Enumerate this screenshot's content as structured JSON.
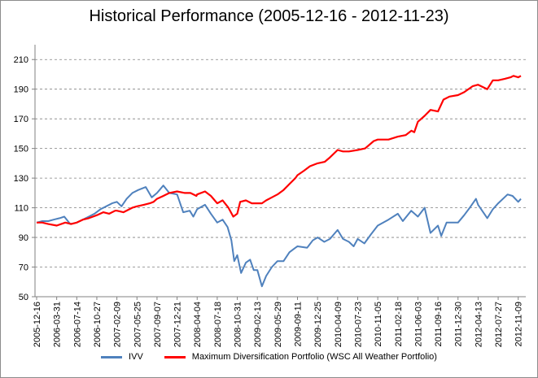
{
  "chart_data": {
    "type": "line",
    "title": "Historical Performance (2005-12-16 - 2012-11-23)",
    "xlabel": "",
    "ylabel": "",
    "ylim": [
      50,
      220
    ],
    "yticks": [
      50,
      70,
      90,
      110,
      130,
      150,
      170,
      190,
      210
    ],
    "xlim": [
      "2005-12-16",
      "2012-11-23"
    ],
    "grid": "horizontal dashed",
    "legend_position": "bottom",
    "x_tick_labels": [
      "2005-12-16",
      "2006-03-31",
      "2006-07-14",
      "2006-10-27",
      "2007-02-09",
      "2007-05-25",
      "2007-09-07",
      "2007-12-21",
      "2008-04-04",
      "2008-07-18",
      "2008-10-31",
      "2009-02-13",
      "2009-05-29",
      "2009-09-11",
      "2009-12-25",
      "2010-04-09",
      "2010-07-23",
      "2010-11-05",
      "2011-02-18",
      "2011-06-03",
      "2011-09-16",
      "2011-12-30",
      "2012-04-13",
      "2012-07-27",
      "2012-11-09"
    ],
    "series": [
      {
        "name": "IVV",
        "color": "#4f81bd",
        "points": [
          [
            "2005-12-16",
            100
          ],
          [
            "2006-01-15",
            101
          ],
          [
            "2006-02-15",
            101
          ],
          [
            "2006-03-15",
            102
          ],
          [
            "2006-04-15",
            103
          ],
          [
            "2006-05-10",
            104
          ],
          [
            "2006-06-10",
            99
          ],
          [
            "2006-07-14",
            100
          ],
          [
            "2006-08-15",
            102
          ],
          [
            "2006-09-15",
            104
          ],
          [
            "2006-10-15",
            106
          ],
          [
            "2006-11-15",
            109
          ],
          [
            "2006-12-15",
            111
          ],
          [
            "2007-01-15",
            113
          ],
          [
            "2007-02-09",
            114
          ],
          [
            "2007-03-05",
            111
          ],
          [
            "2007-04-01",
            116
          ],
          [
            "2007-05-01",
            120
          ],
          [
            "2007-06-01",
            122
          ],
          [
            "2007-07-10",
            124
          ],
          [
            "2007-08-10",
            117
          ],
          [
            "2007-09-07",
            120
          ],
          [
            "2007-10-10",
            125
          ],
          [
            "2007-11-10",
            120
          ],
          [
            "2007-12-21",
            119
          ],
          [
            "2008-01-22",
            107
          ],
          [
            "2008-02-25",
            108
          ],
          [
            "2008-03-15",
            104
          ],
          [
            "2008-04-04",
            109
          ],
          [
            "2008-05-15",
            112
          ],
          [
            "2008-06-15",
            106
          ],
          [
            "2008-07-18",
            100
          ],
          [
            "2008-08-15",
            102
          ],
          [
            "2008-09-10",
            97
          ],
          [
            "2008-09-30",
            88
          ],
          [
            "2008-10-15",
            74
          ],
          [
            "2008-10-31",
            78
          ],
          [
            "2008-11-20",
            66
          ],
          [
            "2008-12-15",
            73
          ],
          [
            "2009-01-06",
            75
          ],
          [
            "2009-01-25",
            68
          ],
          [
            "2009-02-13",
            68
          ],
          [
            "2009-03-09",
            57
          ],
          [
            "2009-03-31",
            64
          ],
          [
            "2009-04-30",
            70
          ],
          [
            "2009-05-29",
            74
          ],
          [
            "2009-06-30",
            74
          ],
          [
            "2009-07-31",
            80
          ],
          [
            "2009-08-31",
            83
          ],
          [
            "2009-09-11",
            84
          ],
          [
            "2009-10-31",
            83
          ],
          [
            "2009-11-30",
            88
          ],
          [
            "2009-12-25",
            90
          ],
          [
            "2010-01-29",
            87
          ],
          [
            "2010-02-28",
            89
          ],
          [
            "2010-04-09",
            95
          ],
          [
            "2010-05-07",
            89
          ],
          [
            "2010-06-07",
            87
          ],
          [
            "2010-07-02",
            84
          ],
          [
            "2010-07-23",
            89
          ],
          [
            "2010-08-27",
            86
          ],
          [
            "2010-09-30",
            92
          ],
          [
            "2010-11-05",
            98
          ],
          [
            "2010-12-31",
            102
          ],
          [
            "2011-02-18",
            106
          ],
          [
            "2011-03-16",
            101
          ],
          [
            "2011-04-29",
            108
          ],
          [
            "2011-06-03",
            104
          ],
          [
            "2011-07-08",
            110
          ],
          [
            "2011-08-08",
            93
          ],
          [
            "2011-09-16",
            98
          ],
          [
            "2011-10-03",
            91
          ],
          [
            "2011-10-31",
            100
          ],
          [
            "2011-12-30",
            100
          ],
          [
            "2012-01-31",
            105
          ],
          [
            "2012-02-29",
            110
          ],
          [
            "2012-04-02",
            116
          ],
          [
            "2012-04-13",
            112
          ],
          [
            "2012-05-31",
            103
          ],
          [
            "2012-06-29",
            109
          ],
          [
            "2012-07-27",
            113
          ],
          [
            "2012-09-14",
            119
          ],
          [
            "2012-10-10",
            118
          ],
          [
            "2012-11-09",
            114
          ],
          [
            "2012-11-23",
            116
          ]
        ]
      },
      {
        "name": "Maximum Diversification Portfolio (WSC All Weather Portfolio)",
        "color": "#ff0000",
        "points": [
          [
            "2005-12-16",
            100
          ],
          [
            "2006-01-15",
            100
          ],
          [
            "2006-02-15",
            99
          ],
          [
            "2006-03-31",
            98
          ],
          [
            "2006-05-15",
            100
          ],
          [
            "2006-06-15",
            99
          ],
          [
            "2006-07-14",
            100
          ],
          [
            "2006-08-15",
            102
          ],
          [
            "2006-09-15",
            103
          ],
          [
            "2006-10-27",
            105
          ],
          [
            "2006-11-30",
            107
          ],
          [
            "2006-12-31",
            106
          ],
          [
            "2007-01-31",
            108
          ],
          [
            "2007-02-09",
            108
          ],
          [
            "2007-03-15",
            107
          ],
          [
            "2007-04-30",
            110
          ],
          [
            "2007-05-25",
            111
          ],
          [
            "2007-06-30",
            112
          ],
          [
            "2007-07-31",
            113
          ],
          [
            "2007-08-20",
            114
          ],
          [
            "2007-09-07",
            116
          ],
          [
            "2007-10-10",
            118
          ],
          [
            "2007-11-10",
            120
          ],
          [
            "2007-12-21",
            121
          ],
          [
            "2008-01-31",
            120
          ],
          [
            "2008-02-29",
            120
          ],
          [
            "2008-03-31",
            118
          ],
          [
            "2008-04-04",
            119
          ],
          [
            "2008-05-15",
            121
          ],
          [
            "2008-06-15",
            118
          ],
          [
            "2008-07-18",
            113
          ],
          [
            "2008-08-15",
            115
          ],
          [
            "2008-09-15",
            110
          ],
          [
            "2008-10-10",
            104
          ],
          [
            "2008-10-31",
            106
          ],
          [
            "2008-11-15",
            114
          ],
          [
            "2008-12-15",
            115
          ],
          [
            "2009-01-15",
            113
          ],
          [
            "2009-02-13",
            113
          ],
          [
            "2009-03-09",
            113
          ],
          [
            "2009-03-31",
            115
          ],
          [
            "2009-04-30",
            117
          ],
          [
            "2009-05-29",
            119
          ],
          [
            "2009-06-30",
            122
          ],
          [
            "2009-07-31",
            126
          ],
          [
            "2009-08-31",
            130
          ],
          [
            "2009-09-11",
            132
          ],
          [
            "2009-10-15",
            135
          ],
          [
            "2009-11-15",
            138
          ],
          [
            "2009-12-25",
            140
          ],
          [
            "2010-01-31",
            141
          ],
          [
            "2010-02-28",
            144
          ],
          [
            "2010-04-09",
            149
          ],
          [
            "2010-05-07",
            148
          ],
          [
            "2010-06-07",
            148
          ],
          [
            "2010-07-23",
            149
          ],
          [
            "2010-08-31",
            150
          ],
          [
            "2010-10-15",
            155
          ],
          [
            "2010-11-05",
            156
          ],
          [
            "2010-12-31",
            156
          ],
          [
            "2011-02-18",
            158
          ],
          [
            "2011-03-31",
            159
          ],
          [
            "2011-04-30",
            162
          ],
          [
            "2011-05-15",
            161
          ],
          [
            "2011-06-03",
            168
          ],
          [
            "2011-07-08",
            172
          ],
          [
            "2011-08-08",
            176
          ],
          [
            "2011-09-16",
            175
          ],
          [
            "2011-10-15",
            183
          ],
          [
            "2011-11-15",
            185
          ],
          [
            "2011-12-30",
            186
          ],
          [
            "2012-01-31",
            188
          ],
          [
            "2012-03-15",
            192
          ],
          [
            "2012-04-13",
            193
          ],
          [
            "2012-05-31",
            190
          ],
          [
            "2012-06-29",
            196
          ],
          [
            "2012-07-27",
            196
          ],
          [
            "2012-08-31",
            197
          ],
          [
            "2012-09-30",
            198
          ],
          [
            "2012-10-15",
            199
          ],
          [
            "2012-11-09",
            198
          ],
          [
            "2012-11-23",
            199
          ]
        ]
      }
    ]
  }
}
